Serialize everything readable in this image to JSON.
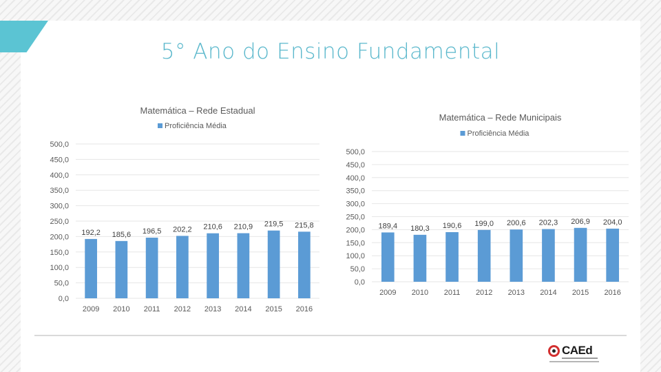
{
  "slide": {
    "title": "5° Ano do Ensino Fundamental",
    "logo_text": "CAEd"
  },
  "colors": {
    "bar": "#5b9bd5",
    "title_accent": "#5bb8cc",
    "corner_accent": "#5bc4d3"
  },
  "chart_data": [
    {
      "type": "bar",
      "title": "Matemática – Rede Estadual",
      "legend": "Proficiência Média",
      "legend_position": "top",
      "categories": [
        "2009",
        "2010",
        "2011",
        "2012",
        "2013",
        "2014",
        "2015",
        "2016"
      ],
      "values": [
        192.2,
        185.6,
        196.5,
        202.2,
        210.6,
        210.9,
        219.5,
        215.8
      ],
      "data_labels": [
        "192,2",
        "185,6",
        "196,5",
        "202,2",
        "210,6",
        "210,9",
        "219,5",
        "215,8"
      ],
      "y_ticks": [
        "0,0",
        "50,0",
        "100,0",
        "150,0",
        "200,0",
        "250,0",
        "300,0",
        "350,0",
        "400,0",
        "450,0",
        "500,0"
      ],
      "ylim": [
        0,
        500
      ],
      "grid": true
    },
    {
      "type": "bar",
      "title": "Matemática – Rede Municipais",
      "legend": "Proficiência Média",
      "legend_position": "top",
      "categories": [
        "2009",
        "2010",
        "2011",
        "2012",
        "2013",
        "2014",
        "2015",
        "2016"
      ],
      "values": [
        189.4,
        180.3,
        190.6,
        199.0,
        200.6,
        202.3,
        206.9,
        204.0
      ],
      "data_labels": [
        "189,4",
        "180,3",
        "190,6",
        "199,0",
        "200,6",
        "202,3",
        "206,9",
        "204,0"
      ],
      "y_ticks": [
        "0,0",
        "50,0",
        "100,0",
        "150,0",
        "200,0",
        "250,0",
        "300,0",
        "350,0",
        "400,0",
        "450,0",
        "500,0"
      ],
      "ylim": [
        0,
        500
      ],
      "grid": true
    }
  ]
}
